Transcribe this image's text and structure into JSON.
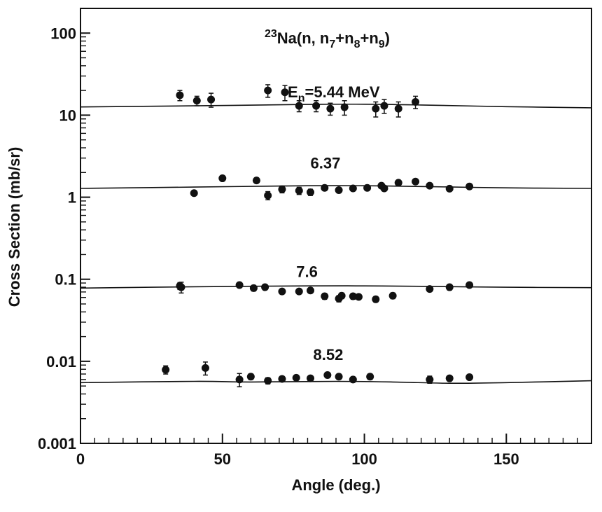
{
  "chart_data": {
    "type": "scatter",
    "title": "",
    "xlabel": "Angle  (deg.)",
    "ylabel": "Cross  Section  (mb/sr)",
    "xlim": [
      0,
      180
    ],
    "ylim": [
      0.001,
      200
    ],
    "yscale": "log",
    "grid": false,
    "legend": "none",
    "x_ticks": [
      0,
      50,
      100,
      150
    ],
    "x_tick_labels": [
      "0",
      "50",
      "100",
      "150"
    ],
    "y_ticks": [
      0.001,
      0.01,
      0.1,
      1,
      10,
      100
    ],
    "y_tick_labels": [
      "0.001",
      "0.01",
      "0.1",
      "1",
      "10",
      "100"
    ],
    "reaction": {
      "mass": "23",
      "element": "Na(n, n",
      "s1": "7",
      "p1": "+n",
      "s2": "8",
      "p2": "+n",
      "s3": "9",
      "close": ")"
    },
    "series": [
      {
        "label_prefix": "E",
        "label_sub": "n",
        "label": "=5.44  MeV",
        "label_pos": [
          73,
          16.5
        ],
        "x": [
          35,
          41,
          46,
          66,
          72,
          77,
          83,
          88,
          93,
          104,
          107,
          112,
          118
        ],
        "y": [
          17.5,
          15.0,
          15.5,
          20.0,
          19.0,
          13.0,
          13.0,
          12.0,
          12.5,
          12.0,
          13.0,
          12.0,
          14.5
        ],
        "err": [
          2.5,
          2.0,
          3.0,
          3.5,
          4.0,
          2.0,
          2.0,
          2.0,
          2.5,
          2.5,
          2.5,
          2.5,
          2.5
        ],
        "curve": [
          [
            0,
            12.6
          ],
          [
            40,
            13.0
          ],
          [
            80,
            13.5
          ],
          [
            100,
            13.6
          ],
          [
            120,
            13.3
          ],
          [
            150,
            12.7
          ],
          [
            180,
            12.3
          ]
        ]
      },
      {
        "label": "6.37",
        "label_pos": [
          81,
          2.25
        ],
        "x": [
          40,
          50,
          62,
          66,
          71,
          77,
          81,
          86,
          91,
          96,
          101,
          106,
          107,
          112,
          118,
          123,
          130,
          137
        ],
        "y": [
          1.12,
          1.7,
          1.6,
          1.05,
          1.25,
          1.2,
          1.15,
          1.3,
          1.22,
          1.28,
          1.3,
          1.38,
          1.28,
          1.5,
          1.55,
          1.38,
          1.27,
          1.35
        ],
        "err": [
          0.06,
          0.12,
          0.1,
          0.12,
          0.12,
          0.12,
          0.1,
          0.08,
          0.08,
          0.08,
          0.08,
          0.08,
          0.08,
          0.08,
          0.08,
          0.08,
          0.08,
          0.08
        ],
        "curve": [
          [
            0,
            1.28
          ],
          [
            40,
            1.33
          ],
          [
            80,
            1.38
          ],
          [
            100,
            1.38
          ],
          [
            120,
            1.35
          ],
          [
            150,
            1.3
          ],
          [
            180,
            1.28
          ]
        ]
      },
      {
        "label": "7.6",
        "label_pos": [
          76,
          0.106
        ],
        "x": [
          35,
          35.5,
          56,
          61,
          65,
          71,
          77,
          81,
          86,
          91,
          92,
          96,
          98,
          104,
          110,
          123,
          130,
          137
        ],
        "y": [
          0.083,
          0.08,
          0.085,
          0.078,
          0.08,
          0.071,
          0.071,
          0.073,
          0.062,
          0.058,
          0.063,
          0.062,
          0.061,
          0.057,
          0.063,
          0.076,
          0.08,
          0.085
        ],
        "err": [
          0.008,
          0.012,
          0.005,
          0.006,
          0.005,
          0.005,
          0.004,
          0.004,
          0.005,
          0.005,
          0.005,
          0.005,
          0.004,
          0.004,
          0.005,
          0.005,
          0.006,
          0.005
        ],
        "curve": [
          [
            0,
            0.078
          ],
          [
            40,
            0.081
          ],
          [
            80,
            0.083
          ],
          [
            100,
            0.083
          ],
          [
            120,
            0.082
          ],
          [
            150,
            0.08
          ],
          [
            180,
            0.079
          ]
        ]
      },
      {
        "label": "8.52",
        "label_pos": [
          82,
          0.0104
        ],
        "x": [
          30,
          44,
          56,
          60,
          66,
          71,
          76,
          81,
          87,
          91,
          96,
          102,
          123,
          130,
          137
        ],
        "y": [
          0.0079,
          0.0083,
          0.006,
          0.0065,
          0.0058,
          0.0061,
          0.0063,
          0.0062,
          0.0068,
          0.0065,
          0.006,
          0.0065,
          0.006,
          0.0062,
          0.0064
        ],
        "err": [
          0.0009,
          0.0015,
          0.0011,
          0.0005,
          0.0005,
          0.0004,
          0.0004,
          0.0004,
          0.0005,
          0.0004,
          0.0004,
          0.0005,
          0.0006,
          0.0004,
          0.0004
        ],
        "curve": [
          [
            0,
            0.0055
          ],
          [
            40,
            0.0057
          ],
          [
            60,
            0.0056
          ],
          [
            90,
            0.0057
          ],
          [
            110,
            0.0056
          ],
          [
            130,
            0.0054
          ],
          [
            150,
            0.0055
          ],
          [
            180,
            0.0058
          ]
        ]
      }
    ]
  }
}
